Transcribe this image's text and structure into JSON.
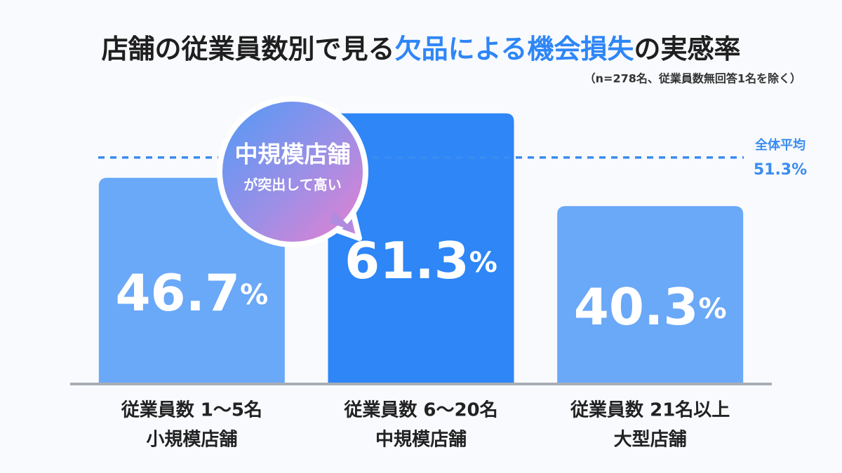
{
  "chart_data": {
    "type": "bar",
    "title": [
      "店舗の従業員数別で見る",
      "欠品による機会損失",
      "の実感率"
    ],
    "subtitle": "（n=278名、従業員数無回答1名を除く）",
    "categories": [
      [
        "従業員数 1〜5名",
        "小規模店舗"
      ],
      [
        "従業員数 6〜20名",
        "中規模店舗"
      ],
      [
        "従業員数 21名以上",
        "大型店舗"
      ]
    ],
    "values": [
      46.7,
      61.3,
      40.3
    ],
    "value_labels": [
      "46.7%",
      "61.3%",
      "40.3%"
    ],
    "colors": [
      "#6aa8f8",
      "#2e86f7",
      "#6aa8f8"
    ],
    "ylim": [
      0,
      70
    ],
    "average": {
      "label": "全体平均",
      "value": 51.3,
      "value_label": "51.3%",
      "color": "#3a8cef"
    },
    "callout": [
      "中規模店舗",
      "が突出して高い"
    ]
  }
}
